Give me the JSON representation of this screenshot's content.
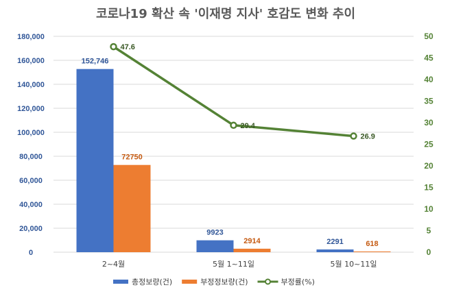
{
  "chart_data": {
    "type": "bar",
    "title": "코로나19 확산 속 '이재명 지사' 호감도 변화 추이",
    "categories": [
      "2~4월",
      "5월 1~11일",
      "5월 10~11일"
    ],
    "series": [
      {
        "name": "총정보량(건)",
        "kind": "bar",
        "axis": "left",
        "color": "#4472C4",
        "label_color": "#2F5597",
        "values": [
          152746,
          9923,
          2291
        ],
        "labels": [
          "152,746",
          "9923",
          "2291"
        ]
      },
      {
        "name": "부정정보량(건)",
        "kind": "bar",
        "axis": "left",
        "color": "#ED7D31",
        "label_color": "#C55A11",
        "values": [
          72750,
          2914,
          618
        ],
        "labels": [
          "72750",
          "2914",
          "618"
        ]
      },
      {
        "name": "부정률(%)",
        "kind": "line",
        "axis": "right",
        "color": "#548235",
        "label_color": "#385723",
        "values": [
          47.6,
          29.4,
          26.9
        ],
        "labels": [
          "47.6",
          "29.4",
          "26.9"
        ]
      }
    ],
    "y_left": {
      "min": 0,
      "max": 180000,
      "ticks": [
        0,
        20000,
        40000,
        60000,
        80000,
        100000,
        120000,
        140000,
        160000,
        180000
      ],
      "tick_labels": [
        "0",
        "20,000",
        "40,000",
        "60,000",
        "80,000",
        "100,000",
        "120,000",
        "140,000",
        "160,000",
        "180,000"
      ]
    },
    "y_right": {
      "min": 0,
      "max": 50,
      "ticks": [
        0,
        5,
        10,
        15,
        20,
        25,
        30,
        35,
        40,
        45,
        50
      ],
      "tick_labels": [
        "0",
        "5",
        "10",
        "15",
        "20",
        "25",
        "30",
        "35",
        "40",
        "45",
        "50"
      ]
    },
    "grid": true,
    "legend_position": "bottom"
  }
}
